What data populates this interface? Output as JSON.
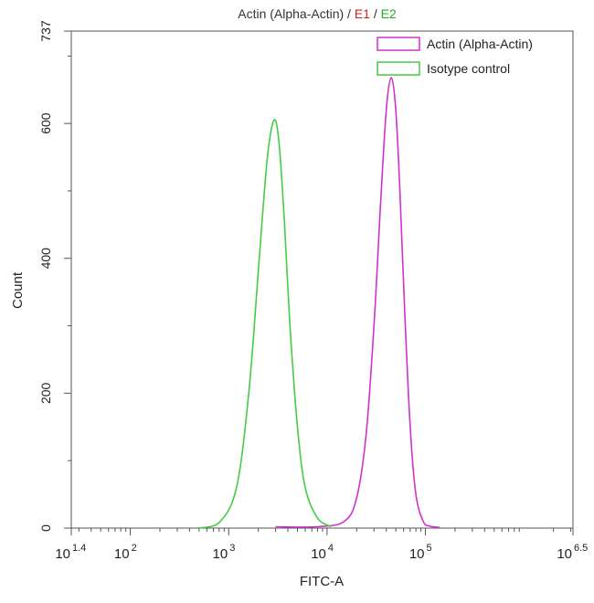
{
  "chart_data": {
    "type": "area",
    "title_parts": [
      {
        "text": "Actin (Alpha-Actin) / ",
        "color": "#333333"
      },
      {
        "text": "E1",
        "color": "#cc2222"
      },
      {
        "text": " / ",
        "color": "#333333"
      },
      {
        "text": "E2",
        "color": "#22aa22"
      }
    ],
    "xlabel": "FITC-A",
    "ylabel": "Count",
    "x_scale": "log",
    "xlim": [
      25.12,
      3162277.66
    ],
    "ylim": [
      0,
      737
    ],
    "x_ticks": [
      {
        "value": 25.12,
        "base": "10",
        "exp": "1.4"
      },
      {
        "value": 100,
        "base": "10",
        "exp": "2"
      },
      {
        "value": 1000,
        "base": "10",
        "exp": "3"
      },
      {
        "value": 10000,
        "base": "10",
        "exp": "4"
      },
      {
        "value": 100000,
        "base": "10",
        "exp": "5"
      },
      {
        "value": 3162277.66,
        "base": "10",
        "exp": "6.5"
      }
    ],
    "y_ticks": [
      {
        "value": 0,
        "label": "0"
      },
      {
        "value": 200,
        "label": "200"
      },
      {
        "value": 400,
        "label": "400"
      },
      {
        "value": 600,
        "label": "600"
      },
      {
        "value": 737,
        "label": "737"
      }
    ],
    "grid": false,
    "legend_position": "top-right",
    "series": [
      {
        "name": "Actin (Alpha-Actin)",
        "color": "#cc33cc",
        "x": [
          3000,
          8000,
          15000,
          20000,
          25000,
          30000,
          35000,
          40000,
          45000,
          50000,
          55000,
          62000,
          70000,
          80000,
          95000,
          110000,
          140000
        ],
        "y": [
          2,
          2,
          10,
          45,
          140,
          300,
          480,
          620,
          668,
          620,
          500,
          310,
          150,
          50,
          10,
          3,
          1
        ]
      },
      {
        "name": "Isotype control",
        "color": "#44cc44",
        "x": [
          500,
          800,
          1200,
          1600,
          2000,
          2400,
          2700,
          3000,
          3300,
          3700,
          4200,
          5000,
          6000,
          8000,
          11000
        ],
        "y": [
          0,
          8,
          60,
          200,
          380,
          530,
          590,
          604,
          560,
          450,
          300,
          150,
          60,
          15,
          2
        ]
      }
    ]
  }
}
